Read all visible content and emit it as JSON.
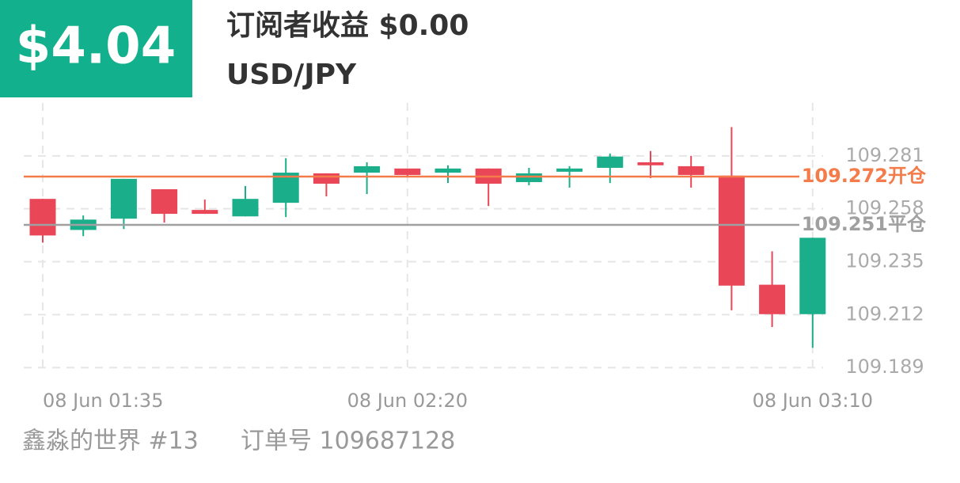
{
  "header": {
    "amount": "$4.04",
    "title": "订阅者收益 $0.00",
    "subtitle": "USD/JPY"
  },
  "footer": {
    "user": "鑫淼的世界 #13",
    "order": "订单号 109687128"
  },
  "chart_data": {
    "type": "candlestick",
    "categories": [
      "08 Jun  01:35",
      null,
      null,
      null,
      null,
      null,
      null,
      null,
      null,
      "08 Jun  02:20",
      null,
      null,
      null,
      null,
      null,
      null,
      null,
      null,
      null,
      "08 Jun  03:10"
    ],
    "open": [
      109.2623,
      109.2488,
      109.2537,
      109.2665,
      109.2575,
      109.2547,
      109.2606,
      109.2734,
      109.2737,
      109.2755,
      109.2737,
      109.2755,
      109.2696,
      109.2741,
      109.2758,
      109.2782,
      109.2765,
      109.2724,
      109.225,
      109.2122
    ],
    "high": [
      109.2623,
      109.2551,
      109.271,
      109.2665,
      109.262,
      109.2679,
      109.28,
      109.2734,
      109.2782,
      109.2755,
      109.2769,
      109.2755,
      109.2758,
      109.2765,
      109.282,
      109.2831,
      109.281,
      109.2935,
      109.2395,
      109.2454
    ],
    "low": [
      109.2433,
      109.2461,
      109.2492,
      109.252,
      109.2558,
      109.2547,
      109.2544,
      109.2634,
      109.2644,
      109.2717,
      109.2692,
      109.2592,
      109.2682,
      109.2672,
      109.2692,
      109.2713,
      109.2672,
      109.2139,
      109.2066,
      109.1976
    ],
    "close": [
      109.2464,
      109.2533,
      109.271,
      109.2558,
      109.2558,
      109.2623,
      109.2737,
      109.2689,
      109.2765,
      109.2727,
      109.2755,
      109.2689,
      109.2734,
      109.2755,
      109.2807,
      109.2769,
      109.2727,
      109.2246,
      109.2122,
      109.2454
    ],
    "up_color": "#1aae8b",
    "down_color": "#e94657",
    "ylim": [
      109.187,
      109.304
    ],
    "yticks": [
      109.189,
      109.212,
      109.235,
      109.258,
      109.281
    ],
    "grid": true,
    "reference_lines": [
      {
        "value": 109.272,
        "label": "109.272开仓",
        "color": "#f47b4a"
      },
      {
        "value": 109.251,
        "label": "109.251平仓",
        "color": "#a0a0a0"
      }
    ]
  }
}
